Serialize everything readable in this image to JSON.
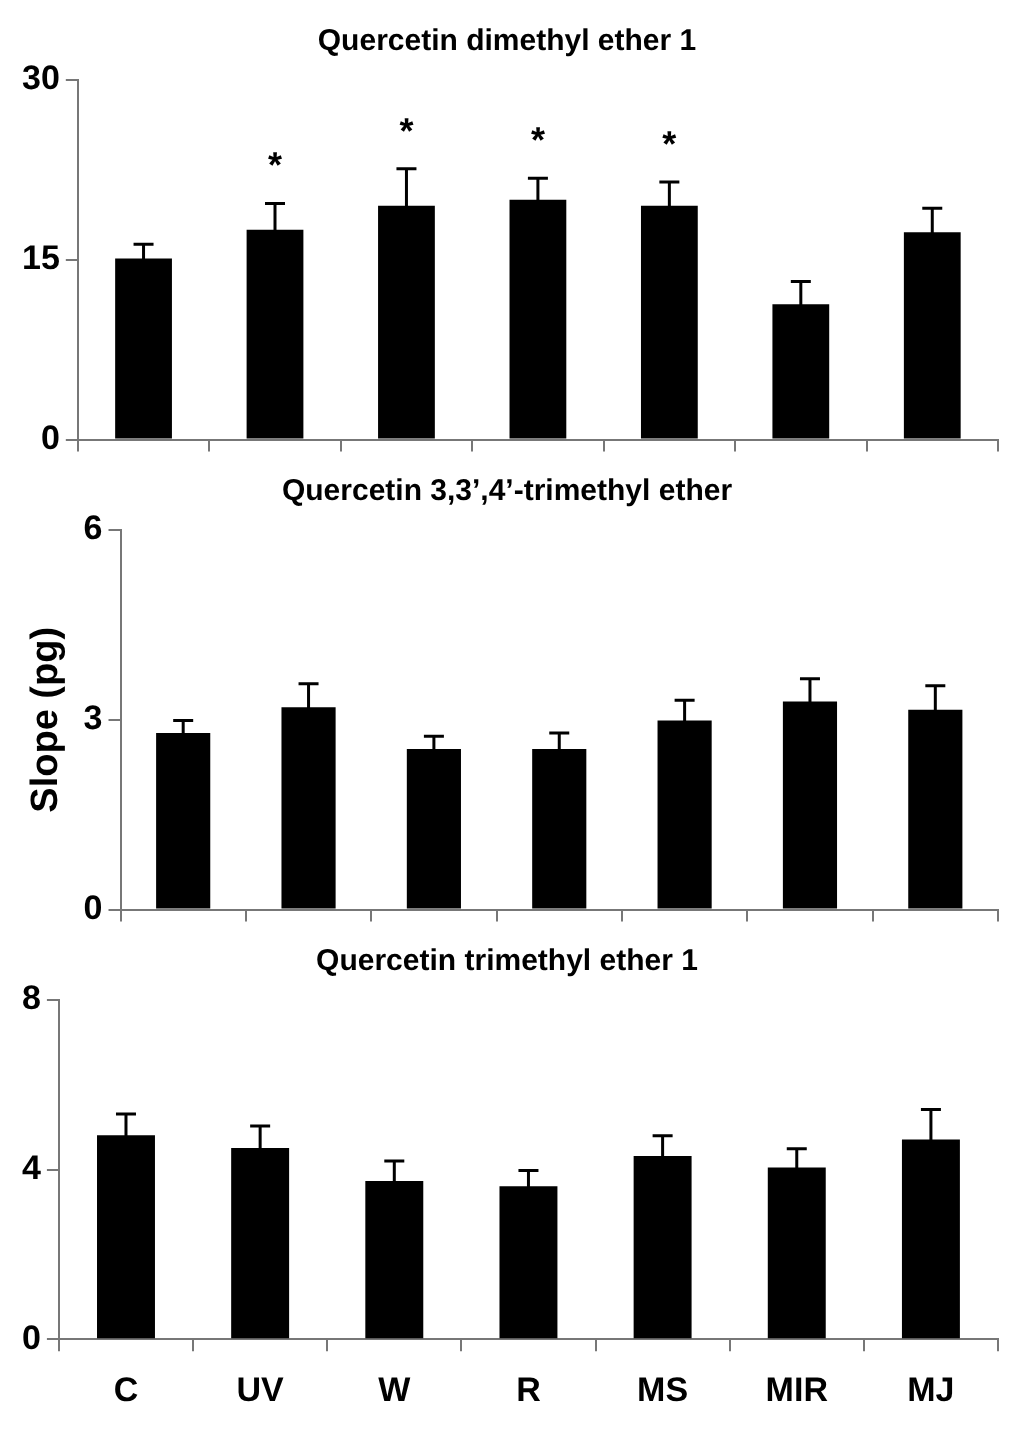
{
  "chart_data": [
    {
      "type": "bar",
      "title": "Quercetin dimethyl ether 1",
      "categories": [
        "C",
        "UV",
        "W",
        "R",
        "MS",
        "MIR",
        "MJ"
      ],
      "values": [
        15.1,
        17.5,
        19.5,
        20.0,
        19.5,
        11.3,
        17.3
      ],
      "errors": [
        1.2,
        2.2,
        3.1,
        1.8,
        2.0,
        1.9,
        2.0
      ],
      "color": "#000000",
      "ylim": [
        0,
        30
      ],
      "yticks": [
        0,
        15,
        30
      ],
      "tick_labels": "y",
      "annotations": [
        {
          "text": "*",
          "x": "UV",
          "y": 17.5
        },
        {
          "text": "*",
          "x": "W",
          "y": 19.5
        },
        {
          "text": "*",
          "x": "R",
          "y": 20.0
        },
        {
          "text": "*",
          "x": "MS",
          "y": 19.5
        }
      ]
    },
    {
      "type": "bar",
      "title": "Quercetin 3,3’,4’-trimethyl ether",
      "ylabel": "Slope (pg)",
      "categories": [
        "C",
        "UV",
        "W",
        "R",
        "MS",
        "MIR",
        "MJ"
      ],
      "values": [
        2.79,
        3.2,
        2.54,
        2.54,
        2.99,
        3.29,
        3.16
      ],
      "errors": [
        0.2,
        0.37,
        0.2,
        0.25,
        0.32,
        0.36,
        0.38
      ],
      "color": "#000000",
      "ylim": [
        0,
        6
      ],
      "yticks": [
        0,
        3,
        6
      ],
      "tick_labels": "y"
    },
    {
      "type": "bar",
      "title": "Quercetin trimethyl ether 1",
      "categories": [
        "C",
        "UV",
        "W",
        "R",
        "MS",
        "MIR",
        "MJ"
      ],
      "values": [
        4.81,
        4.51,
        3.73,
        3.61,
        4.32,
        4.05,
        4.71
      ],
      "errors": [
        0.5,
        0.52,
        0.47,
        0.37,
        0.48,
        0.44,
        0.71
      ],
      "color": "#000000",
      "ylim": [
        0,
        8
      ],
      "yticks": [
        0,
        4,
        8
      ]
    }
  ]
}
